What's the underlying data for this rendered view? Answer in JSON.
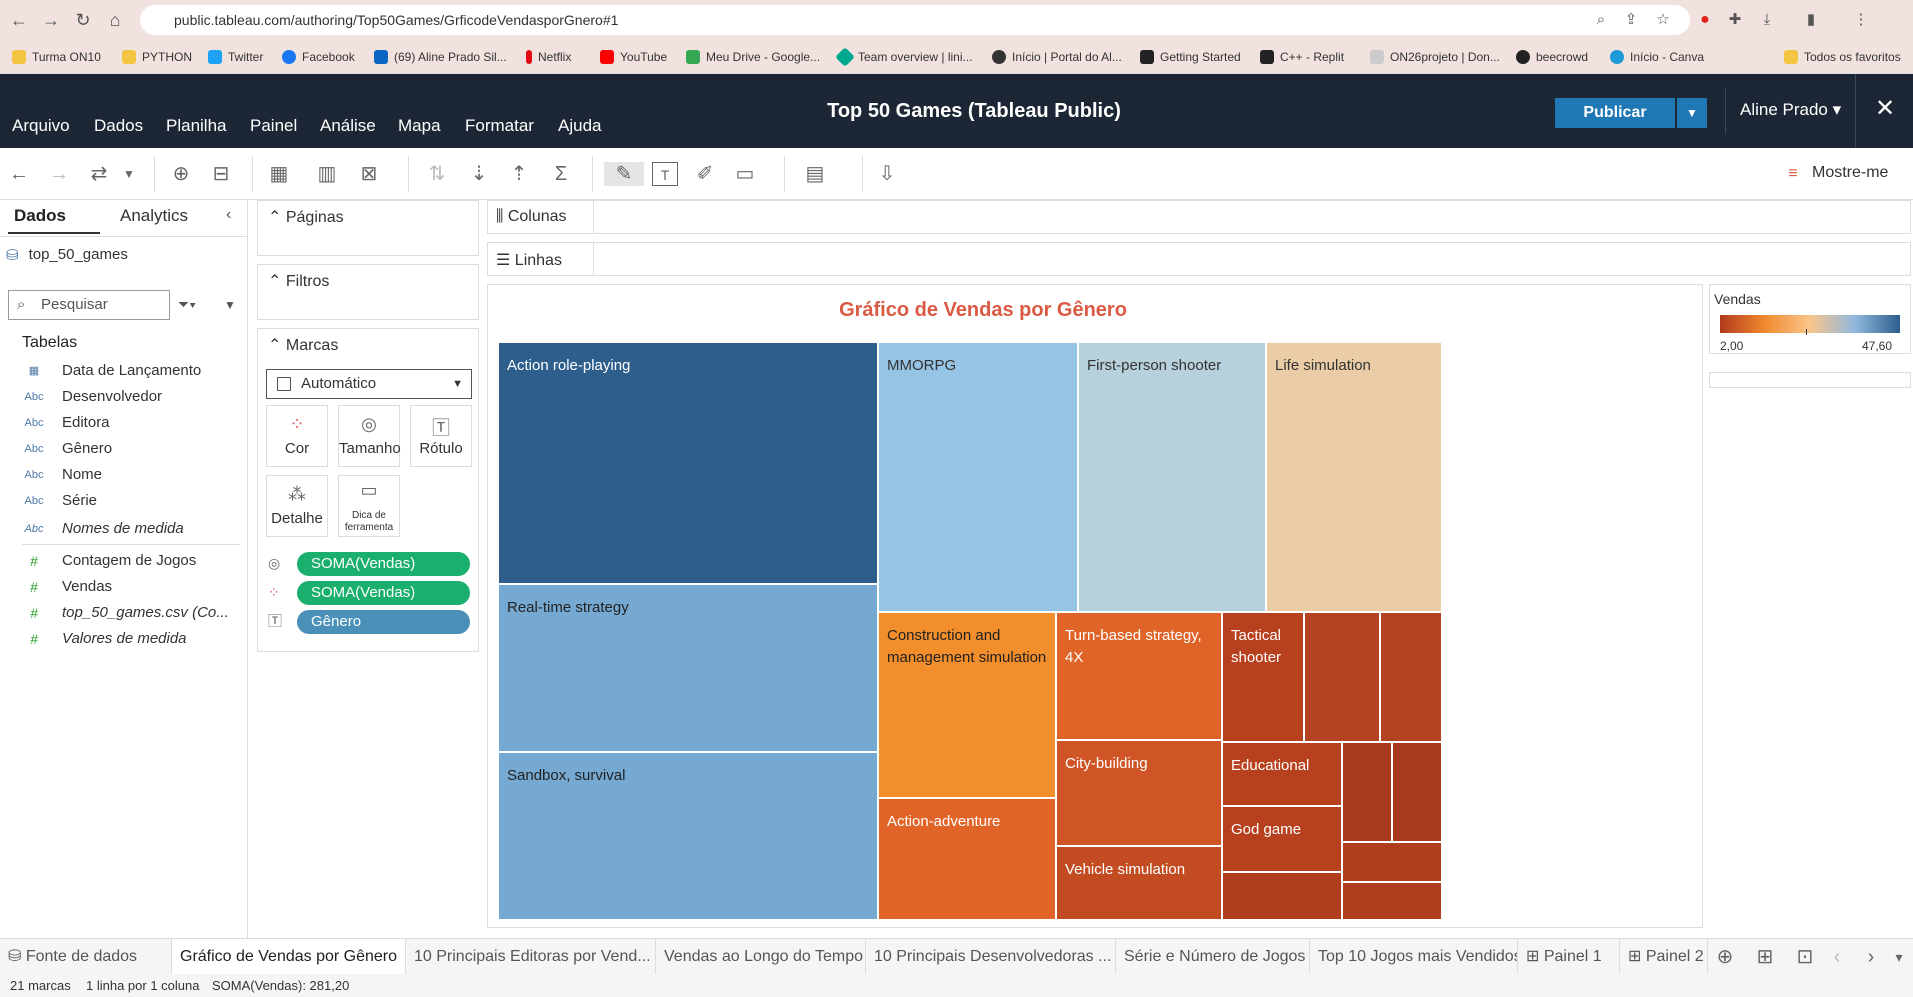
{
  "browser": {
    "url": "public.tableau.com/authoring/Top50Games/GrficodeVendasporGnero#1",
    "bookmarks": [
      "Turma ON10",
      "PYTHON",
      "Twitter",
      "Facebook",
      "(69) Aline Prado Sil...",
      "Netflix",
      "YouTube",
      "Meu Drive - Google...",
      "Team overview | lini...",
      "Início | Portal do Al...",
      "Getting Started",
      "C++ - Replit",
      "ON26projeto | Don...",
      "beecrowd",
      "Início - Canva"
    ],
    "all_bookmarks": "Todos os favoritos"
  },
  "header": {
    "menus": [
      "Arquivo",
      "Dados",
      "Planilha",
      "Painel",
      "Análise",
      "Mapa",
      "Formatar",
      "Ajuda"
    ],
    "title": "Top 50 Games (Tableau Public)",
    "publish": "Publicar",
    "user": "Aline Prado ▾",
    "close": "✕"
  },
  "toolbar": {
    "show_me": "Mostre-me"
  },
  "data_pane": {
    "tab_data": "Dados",
    "tab_analytics": "Analytics",
    "source": "top_50_games",
    "search_placeholder": "Pesquisar",
    "tables_label": "Tabelas",
    "dimensions": [
      {
        "icon": "calendar-icon",
        "name": "Data de Lançamento"
      },
      {
        "icon": "Abc",
        "name": "Desenvolvedor"
      },
      {
        "icon": "Abc",
        "name": "Editora"
      },
      {
        "icon": "Abc",
        "name": "Gênero"
      },
      {
        "icon": "Abc",
        "name": "Nome"
      },
      {
        "icon": "Abc",
        "name": "Série"
      },
      {
        "icon": "Abc",
        "name": "Nomes de medida"
      }
    ],
    "measures": [
      {
        "icon": "#",
        "name": "Contagem de Jogos"
      },
      {
        "icon": "#",
        "name": "Vendas"
      },
      {
        "icon": "#",
        "name": "top_50_games.csv (Co..."
      },
      {
        "icon": "#",
        "name": "Valores de medida"
      }
    ]
  },
  "cards": {
    "pages": "Páginas",
    "filters": "Filtros",
    "marks": "Marcas",
    "marks_type": "Automático",
    "buttons": {
      "color": "Cor",
      "size": "Tamanho",
      "label": "Rótulo",
      "detail": "Detalhe",
      "tooltip": "Dica de ferramenta"
    },
    "pills": [
      "SOMA(Vendas)",
      "SOMA(Vendas)",
      "Gênero"
    ]
  },
  "shelves": {
    "columns": "Colunas",
    "rows": "Linhas"
  },
  "viz": {
    "title": "Gráfico de Vendas por Gênero",
    "cells": [
      "Action role-playing",
      "MMORPG",
      "First-person shooter",
      "Life simulation",
      "Real-time strategy",
      "Sandbox, survival",
      "Construction and management simulation",
      "Turn-based strategy, 4X",
      "Tactical shooter",
      "City-building",
      "Educational",
      "God game",
      "Action-adventure",
      "Vehicle simulation"
    ]
  },
  "legend": {
    "title": "Vendas",
    "min": "2,00",
    "max": "47,60",
    "colors": [
      "#b23a1e",
      "#f08a2e",
      "#2d5e8c"
    ]
  },
  "sheets": [
    "Fonte de dados",
    "Gráfico de Vendas por Gênero",
    "10 Principais Editoras por Vend...",
    "Vendas ao Longo do Tempo",
    "10 Principais Desenvolvedoras ...",
    "Série e Número de Jogos",
    "Top 10 Jogos mais Vendidos",
    "Painel 1",
    "Painel 2"
  ],
  "status": {
    "marks": "21 marcas",
    "rows": "1 linha por 1 coluna",
    "sum": "SOMA(Vendas): 281,20"
  }
}
